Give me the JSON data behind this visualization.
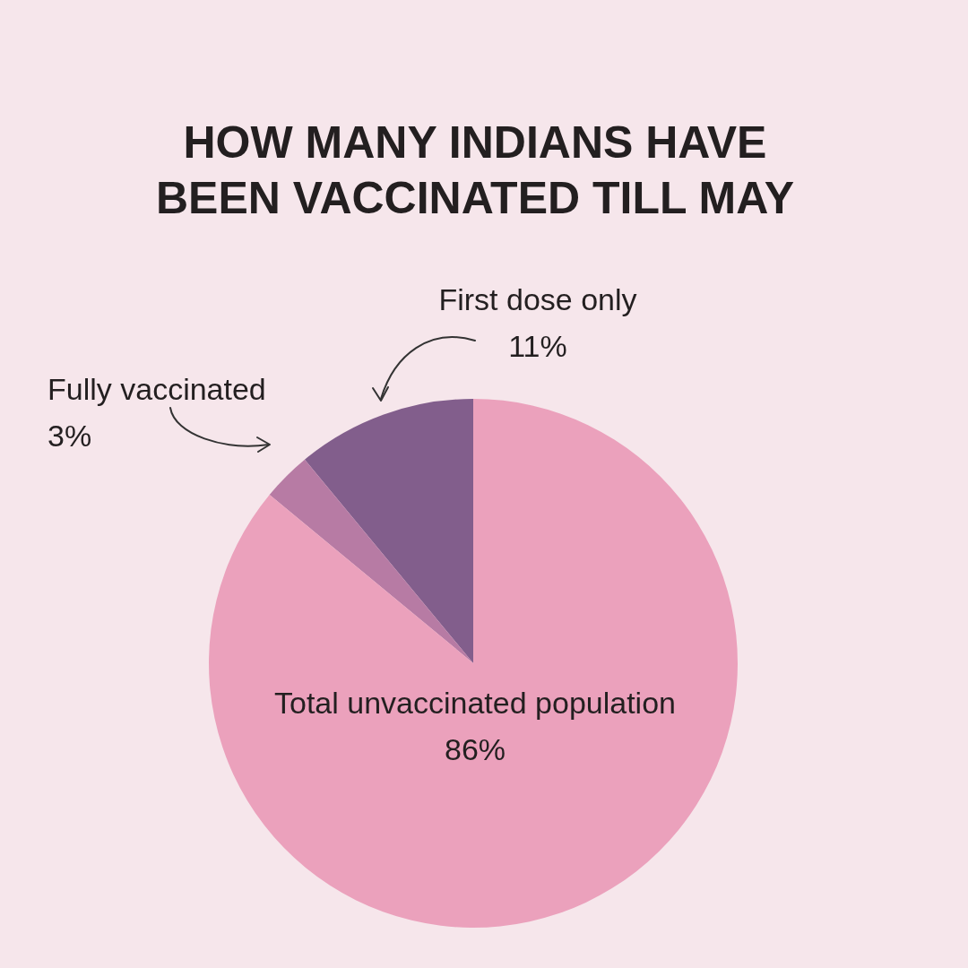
{
  "chart_data": {
    "type": "pie",
    "title": "HOW MANY INDIANS HAVE BEEN VACCINATED TILL MAY",
    "categories": [
      "First dose only",
      "Fully vaccinated",
      "Total unvaccinated population"
    ],
    "values": [
      11,
      3,
      86
    ],
    "colors": [
      "#825e8c",
      "#b77ba4",
      "#eba1bc"
    ],
    "value_labels": [
      "11%",
      "3%",
      "86%"
    ]
  }
}
